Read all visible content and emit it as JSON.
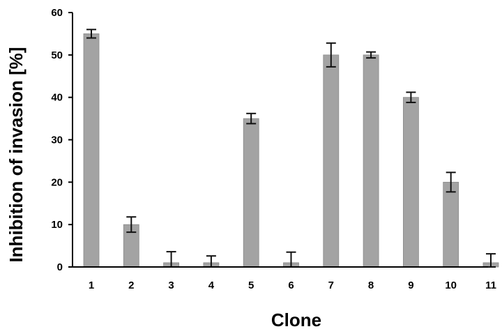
{
  "chart_data": {
    "type": "bar",
    "title": "",
    "xlabel": "Clone",
    "ylabel": "Inhibition of invasion [%]",
    "ylim": [
      0,
      60
    ],
    "yticks": [
      "0",
      "10",
      "20",
      "30",
      "40",
      "50",
      "60"
    ],
    "categories": [
      "1",
      "2",
      "3",
      "4",
      "5",
      "6",
      "7",
      "8",
      "9",
      "10",
      "11"
    ],
    "values": [
      55,
      10,
      1,
      1,
      35,
      1,
      50,
      50,
      40,
      20,
      1
    ],
    "errors": [
      1,
      1.8,
      2.6,
      1.6,
      1.2,
      2.5,
      2.8,
      0.7,
      1.2,
      2.3,
      2.1
    ],
    "grid": false,
    "legend": "none",
    "bar_color": "#a3a3a3"
  }
}
